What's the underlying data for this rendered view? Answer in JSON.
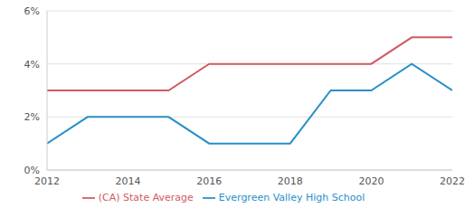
{
  "chart_data": {
    "type": "line",
    "x": [
      2012,
      2013,
      2014,
      2015,
      2016,
      2017,
      2018,
      2019,
      2020,
      2021,
      2022
    ],
    "series": [
      {
        "name": "Evergreen Valley High School",
        "color": "#2a8fc8",
        "values": [
          1,
          2,
          2,
          2,
          1,
          1,
          1,
          3,
          3,
          4,
          3
        ]
      },
      {
        "name": "(CA) State Average",
        "color": "#d05a64",
        "values": [
          3,
          3,
          3,
          3,
          4,
          4,
          4,
          4,
          4,
          5,
          5
        ]
      }
    ],
    "xlim": [
      2012,
      2022
    ],
    "xticks": [
      2012,
      2014,
      2016,
      2018,
      2020,
      2022
    ],
    "ylim": [
      0,
      6
    ],
    "yticks": [
      {
        "value": 0,
        "label": "0%"
      },
      {
        "value": 2,
        "label": "2%"
      },
      {
        "value": 4,
        "label": "4%"
      },
      {
        "value": 6,
        "label": "6%"
      }
    ],
    "grid": true,
    "legend": "bottom"
  }
}
